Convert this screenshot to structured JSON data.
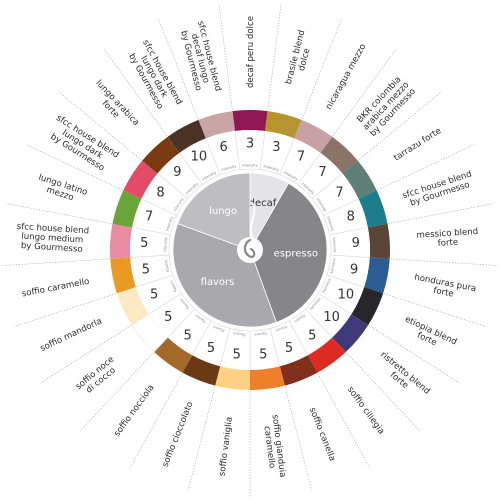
{
  "categories": [
    {
      "name": "decaf",
      "start": 0,
      "end": 30,
      "color": "#e4e4e6",
      "text_color": "#333333"
    },
    {
      "name": "espresso",
      "start": 30,
      "end": 160,
      "color": "#86868a",
      "text_color": "#ffffff"
    },
    {
      "name": "flavors",
      "start": 160,
      "end": 290,
      "color": "#a9a9ad",
      "text_color": "#ffffff"
    },
    {
      "name": "lungo",
      "start": 290,
      "end": 360,
      "color": "#bebec1",
      "text_color": "#ffffff"
    }
  ],
  "ring_label_template": "intensity",
  "ring_label_flavors": "flavors",
  "products": [
    {
      "name": "decaf peru dolce",
      "intensity": "3",
      "color": "#8e1754",
      "ring_label": "intensity"
    },
    {
      "name": "brasile blend dolce",
      "intensity": "3",
      "color": "#b8942e",
      "ring_label": "intensity"
    },
    {
      "name": "nicaragua mezzo",
      "intensity": "7",
      "color": "#c9a0a4",
      "ring_label": "intensity"
    },
    {
      "name": "BKR colombia arabica mezzo by Gourmesso",
      "intensity": "7",
      "color": "#8c7368",
      "ring_label": "intensity"
    },
    {
      "name": "tarrazu forte",
      "intensity": "7",
      "color": "#5e7f76",
      "ring_label": "intensity"
    },
    {
      "name": "sfcc house blend by Gourmesso",
      "intensity": "8",
      "color": "#1d7d8c",
      "ring_label": "intensity"
    },
    {
      "name": "messico blend forte",
      "intensity": "9",
      "color": "#5a4539",
      "ring_label": "intensity"
    },
    {
      "name": "honduras pura forte",
      "intensity": "9",
      "color": "#2b5d92",
      "ring_label": "intensity"
    },
    {
      "name": "etiopia blend forte",
      "intensity": "10",
      "color": "#26262b",
      "ring_label": "intensity"
    },
    {
      "name": "ristretto blend forte",
      "intensity": "10",
      "color": "#3e3a7a",
      "ring_label": "intensity"
    },
    {
      "name": "soffio ciliegia",
      "intensity": "5",
      "color": "#dd2a22",
      "ring_label": "flavors"
    },
    {
      "name": "soffio canella",
      "intensity": "5",
      "color": "#7f2f1c",
      "ring_label": "flavors"
    },
    {
      "name": "soffio gianduia caramello",
      "intensity": "5",
      "color": "#ef7f2a",
      "ring_label": "flavors"
    },
    {
      "name": "soffio vaniglia",
      "intensity": "5",
      "color": "#fed282",
      "ring_label": "flavors"
    },
    {
      "name": "soffio cioccolato",
      "intensity": "5",
      "color": "#6b3a15",
      "ring_label": "flavors"
    },
    {
      "name": "soffio nocciola",
      "intensity": "5",
      "color": "#a36a2a",
      "ring_label": "flavors"
    },
    {
      "name": "soffio noce di cocco",
      "intensity": "5",
      "color": "#ffffff",
      "ring_label": "flavors"
    },
    {
      "name": "soffio mandorla",
      "intensity": "5",
      "color": "#fde9c4",
      "ring_label": "flavors"
    },
    {
      "name": "soffio caramello",
      "intensity": "5",
      "color": "#e89a24",
      "ring_label": "flavors"
    },
    {
      "name": "sfcc house blend lungo medium by Gourmesso",
      "intensity": "5",
      "color": "#e98ba1",
      "ring_label": "intensity"
    },
    {
      "name": "lungo latino mezzo",
      "intensity": "7",
      "color": "#6aa53a",
      "ring_label": "intensity"
    },
    {
      "name": "sfcc house blend lungo dark by Gourmesso",
      "intensity": "8",
      "color": "#e24c68",
      "ring_label": "intensity"
    },
    {
      "name": "lungo arabica forte",
      "intensity": "9",
      "color": "#7a3a12",
      "ring_label": "intensity"
    },
    {
      "name": "sfcc house blend lungo dark by Gourmesso",
      "intensity": "10",
      "color": "#4a3226",
      "ring_label": "intensity"
    },
    {
      "name": "sfcc house blend decaf lungo by Gourmesso",
      "intensity": "6",
      "color": "#c9a5a6",
      "ring_label": "intensity"
    }
  ],
  "label_lines": [
    [
      "decaf peru dolce"
    ],
    [
      "brasile blend",
      "dolce"
    ],
    [
      "nicaragua mezzo"
    ],
    [
      "BKR colombia",
      "arabica mezzo",
      "by Gourmesso"
    ],
    [
      "tarrazu forte"
    ],
    [
      "sfcc house blend",
      "by Gourmesso"
    ],
    [
      "messico blend",
      "forte"
    ],
    [
      "honduras pura",
      "forte"
    ],
    [
      "etiopia blend",
      "forte"
    ],
    [
      "ristretto blend",
      "forte"
    ],
    [
      "soffio ciliegia"
    ],
    [
      "soffio canella"
    ],
    [
      "soffio gianduia",
      "caramello"
    ],
    [
      "soffio vaniglia"
    ],
    [
      "soffio cioccolato"
    ],
    [
      "soffio nocciola"
    ],
    [
      "soffio noce",
      "di cocco"
    ],
    [
      "soffio mandorla"
    ],
    [
      "soffio caramello"
    ],
    [
      "sfcc house blend",
      "lungo medium",
      "by Gourmesso"
    ],
    [
      "lungo latino",
      "mezzo"
    ],
    [
      "sfcc house blend",
      "lungo dark",
      "by Gourmesso"
    ],
    [
      "lungo arabica",
      "forte"
    ],
    [
      "sfcc house blend",
      "lungo dark",
      "by Gourmesso"
    ],
    [
      "sfcc house blend",
      "decaf lungo",
      "by Gourmesso"
    ]
  ],
  "logo_icon": "coffee-bean-swirl-icon"
}
